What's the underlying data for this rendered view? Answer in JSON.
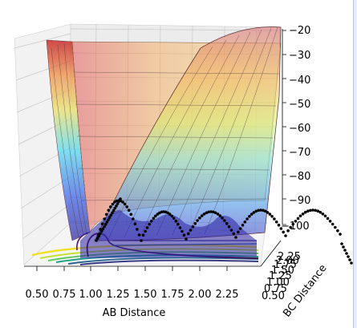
{
  "chart_data": {
    "type": "surface3d",
    "title": "",
    "xlabel": "AB Distance",
    "ylabel": "BC Distance",
    "zlabel": "",
    "x_ticks": [
      "0.50",
      "0.75",
      "1.00",
      "1.25",
      "1.50",
      "1.75",
      "2.00",
      "2.25"
    ],
    "y_ticks": [
      "0.50",
      "0.75",
      "1.00",
      "1.25",
      "1.50",
      "1.75",
      "2.00",
      "2.25"
    ],
    "z_ticks": [
      "−20",
      "−30",
      "−40",
      "−50",
      "−60",
      "−70",
      "−80",
      "−90",
      "−100"
    ],
    "xlim": [
      0.5,
      2.35
    ],
    "ylim": [
      0.5,
      2.35
    ],
    "zlim": [
      -105,
      -20
    ],
    "grid": true,
    "colormap": "jet",
    "surface_alpha": 0.35,
    "contour_colormap": "viridis",
    "trajectory_color": "#000000",
    "trajectory_style": "dotted"
  }
}
